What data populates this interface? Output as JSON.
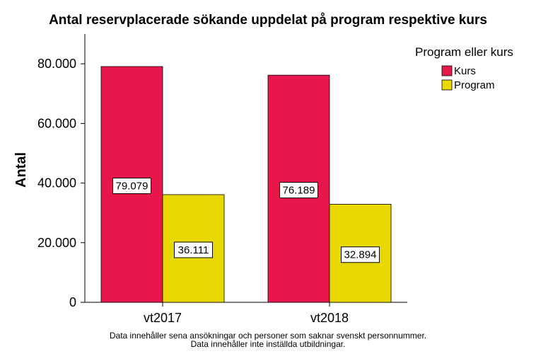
{
  "chart_data": {
    "type": "bar",
    "title": "Antal reservplacerade sökande uppdelat på program respektive kurs",
    "xlabel": "",
    "ylabel": "Antal",
    "categories": [
      "vt2017",
      "vt2018"
    ],
    "series": [
      {
        "name": "Kurs",
        "values": [
          79079,
          76189
        ],
        "labels": [
          "79.079",
          "76.189"
        ],
        "color": "#e8174b"
      },
      {
        "name": "Program",
        "values": [
          36111,
          32894
        ],
        "labels": [
          "36.111",
          "32.894"
        ],
        "color": "#e8d800"
      }
    ],
    "ylim": [
      0,
      90000
    ],
    "yticks": [
      0,
      20000,
      40000,
      60000,
      80000
    ],
    "ytick_labels": [
      "0",
      "20.000",
      "40.000",
      "60.000",
      "80.000"
    ],
    "legend": {
      "title": "Program eller kurs",
      "position": "top-right"
    },
    "grid": false,
    "footnotes": [
      "Data innehåller sena ansökningar och personer som saknar svenskt personnummer.",
      "Data innehåller inte inställda utbildningar."
    ]
  }
}
